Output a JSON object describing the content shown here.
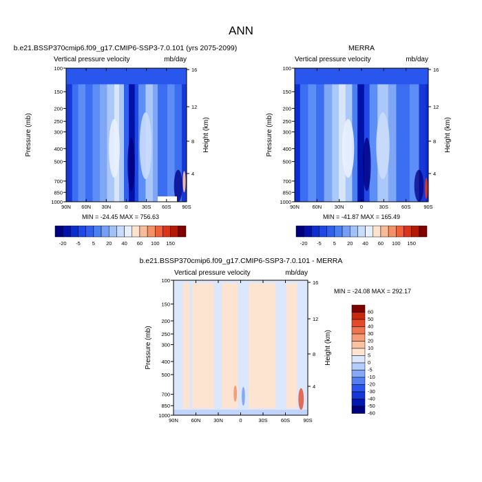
{
  "page_title": "ANN",
  "palette": {
    "cbar1": [
      "#00007f",
      "#0012a8",
      "#0b2ed1",
      "#1e49e6",
      "#3060f0",
      "#4b80f2",
      "#739ff5",
      "#9fc0f8",
      "#c8dcfb",
      "#e8f0fe",
      "#fde2cc",
      "#f9bb96",
      "#f58f66",
      "#ef6238",
      "#dd3414",
      "#b31a05",
      "#7f0000"
    ],
    "diff": [
      "#00007f",
      "#0018b0",
      "#1536d8",
      "#2c55ee",
      "#5580f2",
      "#86a8f6",
      "#b6ccfa",
      "#dbe7fd",
      "#fde4d0",
      "#fac2a0",
      "#f59d76",
      "#ef7550",
      "#e54b2a",
      "#c8280c",
      "#7f0000"
    ]
  },
  "chart_data": [
    {
      "type": "heatmap",
      "title": "b.e21.BSSP370cmip6.f09_g17.CMIP6-SSP3-7.0.101 (yrs 2075-2099)",
      "panel_label": "Vertical pressure velocity",
      "units": "mb/day",
      "xlabel": "",
      "ylabel": "Pressure (mb)",
      "ylabel_right": "Height (km)",
      "x_ticks": [
        "90N",
        "60N",
        "30N",
        "0",
        "30S",
        "60S",
        "90S"
      ],
      "y_ticks": [
        "100",
        "150",
        "200",
        "250",
        "300",
        "400",
        "500",
        "700",
        "850",
        "1000"
      ],
      "y_ticks_right": [
        "16",
        "12",
        "8",
        "4"
      ],
      "min": -24.45,
      "max": 756.63,
      "stats_text": "MIN = -24.45   MAX = 756.63",
      "colorbar_labels": [
        "-20",
        "-5",
        "5",
        "20",
        "40",
        "60",
        "100",
        "150"
      ],
      "colorbar_levels": [
        -20,
        -15,
        -10,
        -5,
        0,
        5,
        10,
        15,
        20,
        30,
        40,
        50,
        60,
        80,
        100,
        125,
        150
      ]
    },
    {
      "type": "heatmap",
      "title": "MERRA",
      "panel_label": "Vertical pressure velocity",
      "units": "mb/day",
      "xlabel": "",
      "ylabel": "Pressure (mb)",
      "ylabel_right": "Height (km)",
      "x_ticks": [
        "90N",
        "60N",
        "30N",
        "0",
        "30S",
        "60S",
        "90S"
      ],
      "y_ticks": [
        "100",
        "150",
        "200",
        "250",
        "300",
        "400",
        "500",
        "700",
        "850",
        "1000"
      ],
      "y_ticks_right": [
        "16",
        "12",
        "8",
        "4"
      ],
      "min": -41.87,
      "max": 165.49,
      "stats_text": "MIN = -41.87   MAX = 165.49",
      "colorbar_labels": [
        "-20",
        "-5",
        "5",
        "20",
        "40",
        "60",
        "100",
        "150"
      ],
      "colorbar_levels": [
        -20,
        -15,
        -10,
        -5,
        0,
        5,
        10,
        15,
        20,
        30,
        40,
        50,
        60,
        80,
        100,
        125,
        150
      ]
    },
    {
      "type": "heatmap",
      "title": "b.e21.BSSP370cmip6.f09_g17.CMIP6-SSP3-7.0.101 - MERRA",
      "panel_label": "Vertical pressure velocity",
      "units": "mb/day",
      "xlabel": "",
      "ylabel": "Pressure (mb)",
      "ylabel_right": "Height (km)",
      "x_ticks": [
        "90N",
        "60N",
        "30N",
        "0",
        "30S",
        "60S",
        "90S"
      ],
      "y_ticks": [
        "100",
        "150",
        "200",
        "250",
        "300",
        "400",
        "500",
        "700",
        "850",
        "1000"
      ],
      "y_ticks_right": [
        "16",
        "12",
        "8",
        "4"
      ],
      "min": -24.08,
      "max": 292.17,
      "stats_text": "MIN = -24.08   MAX = 292.17",
      "colorbar_labels": [
        "60",
        "50",
        "40",
        "30",
        "20",
        "10",
        "5",
        "0",
        "-5",
        "-10",
        "-20",
        "-30",
        "-40",
        "-50",
        "-60"
      ],
      "colorbar_levels": [
        60,
        50,
        40,
        30,
        20,
        10,
        5,
        0,
        -5,
        -10,
        -20,
        -30,
        -40,
        -50,
        -60
      ]
    }
  ]
}
